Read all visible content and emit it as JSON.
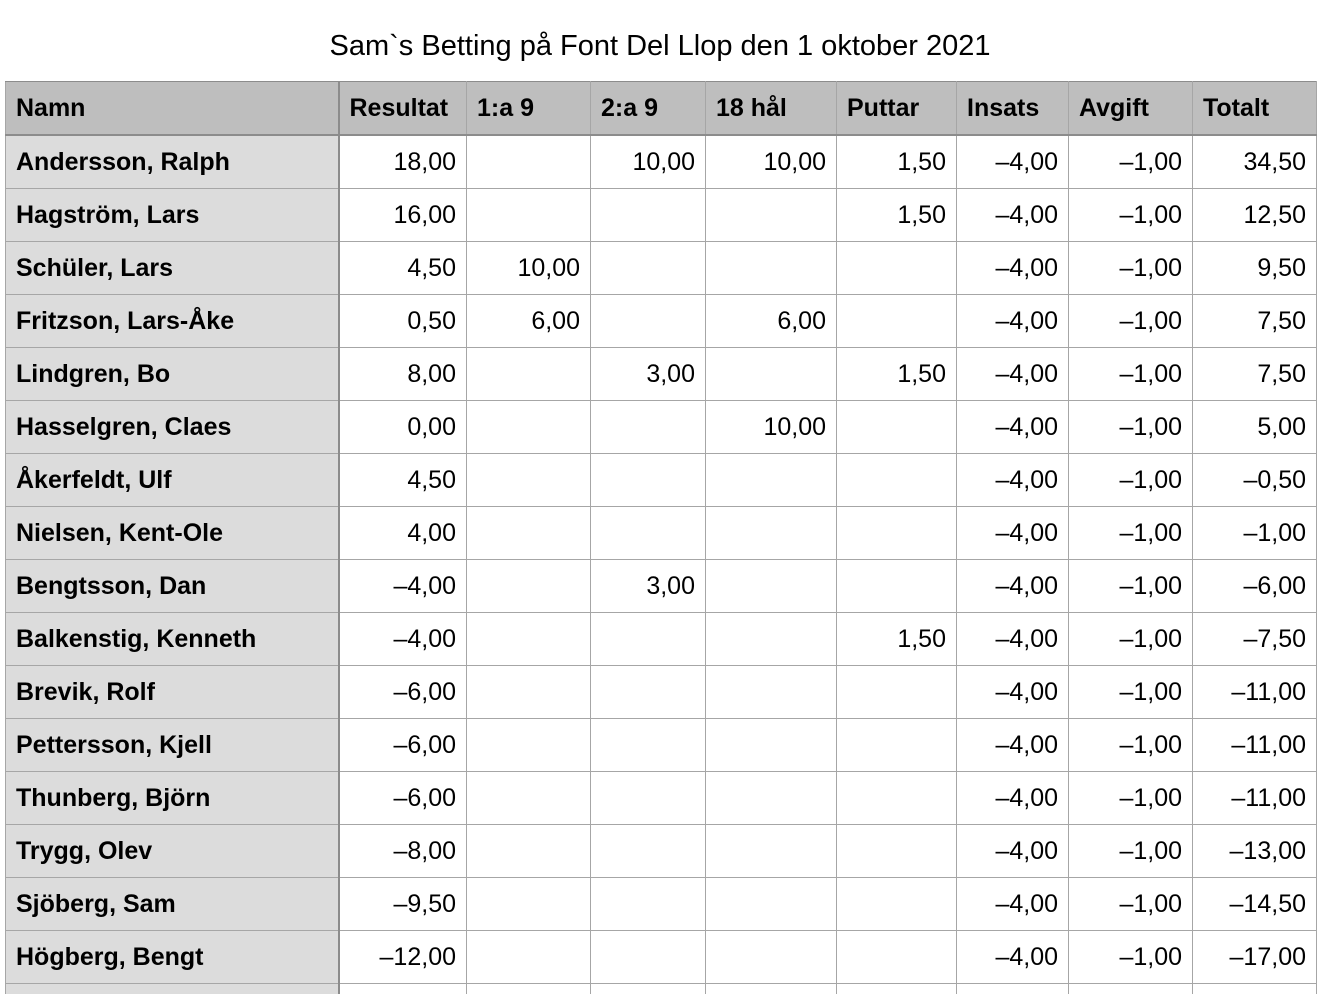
{
  "title": "Sam`s Betting på Font Del Llop den 1 oktober 2021",
  "columns": [
    "Namn",
    "Resultat",
    "1:a 9",
    "2:a 9",
    "18 hål",
    "Puttar",
    "Insats",
    "Avgift",
    "Totalt"
  ],
  "rows": [
    [
      "Andersson, Ralph",
      "18,00",
      "",
      "10,00",
      "10,00",
      "1,50",
      "–4,00",
      "–1,00",
      "34,50"
    ],
    [
      "Hagström, Lars",
      "16,00",
      "",
      "",
      "",
      "1,50",
      "–4,00",
      "–1,00",
      "12,50"
    ],
    [
      "Schüler, Lars",
      "4,50",
      "10,00",
      "",
      "",
      "",
      "–4,00",
      "–1,00",
      "9,50"
    ],
    [
      "Fritzson, Lars-Åke",
      "0,50",
      "6,00",
      "",
      "6,00",
      "",
      "–4,00",
      "–1,00",
      "7,50"
    ],
    [
      "Lindgren, Bo",
      "8,00",
      "",
      "3,00",
      "",
      "1,50",
      "–4,00",
      "–1,00",
      "7,50"
    ],
    [
      "Hasselgren, Claes",
      "0,00",
      "",
      "",
      "10,00",
      "",
      "–4,00",
      "–1,00",
      "5,00"
    ],
    [
      "Åkerfeldt, Ulf",
      "4,50",
      "",
      "",
      "",
      "",
      "–4,00",
      "–1,00",
      "–0,50"
    ],
    [
      "Nielsen, Kent-Ole",
      "4,00",
      "",
      "",
      "",
      "",
      "–4,00",
      "–1,00",
      "–1,00"
    ],
    [
      "Bengtsson, Dan",
      "–4,00",
      "",
      "3,00",
      "",
      "",
      "–4,00",
      "–1,00",
      "–6,00"
    ],
    [
      "Balkenstig, Kenneth",
      "–4,00",
      "",
      "",
      "",
      "1,50",
      "–4,00",
      "–1,00",
      "–7,50"
    ],
    [
      "Brevik, Rolf",
      "–6,00",
      "",
      "",
      "",
      "",
      "–4,00",
      "–1,00",
      "–11,00"
    ],
    [
      "Pettersson, Kjell",
      "–6,00",
      "",
      "",
      "",
      "",
      "–4,00",
      "–1,00",
      "–11,00"
    ],
    [
      "Thunberg, Björn",
      "–6,00",
      "",
      "",
      "",
      "",
      "–4,00",
      "–1,00",
      "–11,00"
    ],
    [
      "Trygg, Olev",
      "–8,00",
      "",
      "",
      "",
      "",
      "–4,00",
      "–1,00",
      "–13,00"
    ],
    [
      "Sjöberg, Sam",
      "–9,50",
      "",
      "",
      "",
      "",
      "–4,00",
      "–1,00",
      "–14,50"
    ],
    [
      "Högberg, Bengt",
      "–12,00",
      "",
      "",
      "",
      "",
      "–4,00",
      "–1,00",
      "–17,00"
    ]
  ]
}
